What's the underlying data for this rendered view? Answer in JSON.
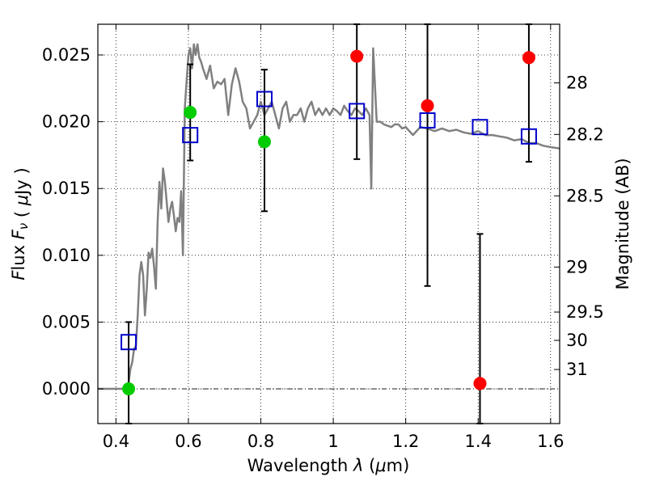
{
  "chart_data": {
    "type": "line",
    "xlabel": "Wavelength  λ (μm)",
    "ylabel": "Flux  Fν  ( μJy )",
    "ylabel_right": "Magnitude (AB)",
    "xlim": [
      0.35,
      1.625
    ],
    "ylim": [
      -0.0026,
      0.0273
    ],
    "x_ticks": [
      0.4,
      0.6,
      0.8,
      1.0,
      1.2,
      1.4,
      1.6
    ],
    "x_tick_labels": [
      "0.4",
      "0.6",
      "0.8",
      "1",
      "1.2",
      "1.4",
      "1.6"
    ],
    "y_ticks": [
      0.0,
      0.005,
      0.01,
      0.015,
      0.02,
      0.025
    ],
    "y_tick_labels": [
      "0.000",
      "0.005",
      "0.010",
      "0.015",
      "0.020",
      "0.025"
    ],
    "right_ticks": [
      {
        "label": "28",
        "flux": 0.02291
      },
      {
        "label": "28.2",
        "flux": 0.01905
      },
      {
        "label": "28.5",
        "flux": 0.01445
      },
      {
        "label": "29",
        "flux": 0.00912
      },
      {
        "label": "29.5",
        "flux": 0.00575
      },
      {
        "label": "30",
        "flux": 0.00363
      },
      {
        "label": "31",
        "flux": 0.00145
      }
    ],
    "grid": true,
    "zero_line": true,
    "colors": {
      "model": "#808080",
      "green_points": "#00cc00",
      "red_points": "#ff0000",
      "model_boxes": "#0000cc",
      "error_bars": "#000000"
    },
    "series": [
      {
        "kind": "model_spectrum",
        "x": [
          0.35,
          0.43,
          0.435,
          0.44,
          0.445,
          0.45,
          0.455,
          0.46,
          0.465,
          0.47,
          0.475,
          0.48,
          0.485,
          0.49,
          0.495,
          0.5,
          0.505,
          0.51,
          0.515,
          0.52,
          0.525,
          0.53,
          0.535,
          0.54,
          0.545,
          0.55,
          0.555,
          0.56,
          0.565,
          0.57,
          0.575,
          0.58,
          0.585,
          0.59,
          0.595,
          0.6,
          0.605,
          0.61,
          0.615,
          0.62,
          0.625,
          0.63,
          0.635,
          0.64,
          0.65,
          0.66,
          0.67,
          0.68,
          0.69,
          0.7,
          0.71,
          0.72,
          0.73,
          0.74,
          0.75,
          0.76,
          0.77,
          0.78,
          0.79,
          0.8,
          0.81,
          0.82,
          0.83,
          0.84,
          0.85,
          0.86,
          0.87,
          0.88,
          0.89,
          0.9,
          0.91,
          0.92,
          0.93,
          0.94,
          0.95,
          0.96,
          0.97,
          0.98,
          0.99,
          1.0,
          1.01,
          1.02,
          1.03,
          1.04,
          1.05,
          1.06,
          1.07,
          1.08,
          1.09,
          1.1,
          1.105,
          1.11,
          1.12,
          1.13,
          1.14,
          1.15,
          1.16,
          1.17,
          1.18,
          1.19,
          1.2,
          1.22,
          1.24,
          1.26,
          1.28,
          1.3,
          1.32,
          1.34,
          1.36,
          1.38,
          1.4,
          1.42,
          1.44,
          1.46,
          1.48,
          1.5,
          1.52,
          1.54,
          1.56,
          1.58,
          1.6,
          1.625
        ],
        "y": [
          0.0,
          0.0,
          0.0005,
          0.0015,
          0.002,
          0.003,
          0.0032,
          0.0055,
          0.0085,
          0.0095,
          0.0085,
          0.0055,
          0.0075,
          0.0102,
          0.0098,
          0.0105,
          0.0092,
          0.0075,
          0.0125,
          0.0155,
          0.0135,
          0.0165,
          0.0155,
          0.014,
          0.0125,
          0.0135,
          0.014,
          0.013,
          0.0118,
          0.0128,
          0.0125,
          0.0148,
          0.01,
          0.021,
          0.023,
          0.025,
          0.0255,
          0.024,
          0.0258,
          0.025,
          0.0258,
          0.0248,
          0.0245,
          0.024,
          0.0232,
          0.0242,
          0.0225,
          0.023,
          0.0228,
          0.0232,
          0.0205,
          0.0228,
          0.024,
          0.023,
          0.0215,
          0.021,
          0.0195,
          0.02,
          0.0205,
          0.0215,
          0.0205,
          0.021,
          0.0215,
          0.0205,
          0.0195,
          0.021,
          0.0215,
          0.02,
          0.0205,
          0.0205,
          0.021,
          0.02,
          0.021,
          0.0215,
          0.0205,
          0.021,
          0.0205,
          0.021,
          0.0205,
          0.021,
          0.0208,
          0.0205,
          0.0212,
          0.0208,
          0.0205,
          0.021,
          0.0208,
          0.0205,
          0.021,
          0.0205,
          0.015,
          0.0255,
          0.02,
          0.02,
          0.0198,
          0.0197,
          0.0196,
          0.0198,
          0.0198,
          0.0195,
          0.0196,
          0.019,
          0.0196,
          0.0195,
          0.0193,
          0.0195,
          0.0193,
          0.0194,
          0.0192,
          0.0191,
          0.0193,
          0.019,
          0.019,
          0.0189,
          0.0188,
          0.0186,
          0.0187,
          0.0184,
          0.0184,
          0.0182,
          0.0181,
          0.018
        ]
      },
      {
        "kind": "model_boxes",
        "x": [
          0.435,
          0.605,
          0.81,
          1.065,
          1.26,
          1.405,
          1.54
        ],
        "y": [
          0.0035,
          0.019,
          0.0217,
          0.0208,
          0.0201,
          0.0196,
          0.0189
        ]
      },
      {
        "kind": "observed_green",
        "x": [
          0.435,
          0.605,
          0.81
        ],
        "y": [
          0.0,
          0.0207,
          0.0185
        ],
        "err_low": [
          null,
          0.0171,
          0.0133
        ],
        "err_high": [
          null,
          0.0243,
          0.0239
        ]
      },
      {
        "kind": "observed_red",
        "x": [
          1.065,
          1.26,
          1.405,
          1.54
        ],
        "y": [
          0.0249,
          0.0212,
          0.0004,
          0.0248
        ],
        "err_low": [
          0.0172,
          0.0077,
          -0.0026,
          0.017
        ],
        "err_high": [
          0.0273,
          0.0273,
          0.0116,
          0.0273
        ]
      },
      {
        "kind": "upper_limit",
        "x": [
          0.435
        ],
        "err_low": [
          -0.0026
        ],
        "err_high": [
          0.005
        ]
      }
    ]
  }
}
